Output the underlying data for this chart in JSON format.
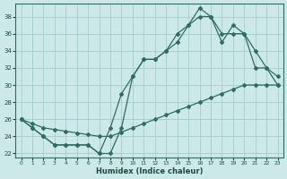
{
  "xlabel": "Humidex (Indice chaleur)",
  "bg_color": "#cce8e8",
  "grid_color": "#aad0d0",
  "line_color": "#2a6e64",
  "line1_x": [
    0,
    1,
    2,
    3,
    4,
    5,
    6,
    7,
    8,
    9,
    10,
    11,
    12,
    13,
    14,
    15,
    16,
    17,
    18,
    19,
    20,
    21,
    22,
    23
  ],
  "line1_y": [
    26,
    25,
    24,
    23,
    23,
    23,
    23,
    22,
    22,
    25,
    31,
    33,
    33,
    34,
    35,
    37,
    38,
    38,
    35,
    37,
    36,
    32,
    32,
    31
  ],
  "line2_x": [
    0,
    1,
    2,
    3,
    4,
    5,
    6,
    7,
    8,
    9,
    10,
    11,
    12,
    13,
    14,
    15,
    16,
    17,
    18,
    19,
    20,
    21,
    22,
    23
  ],
  "line2_y": [
    26,
    25,
    24,
    23,
    23,
    23,
    23,
    22,
    25,
    29,
    31,
    33,
    33,
    34,
    36,
    37,
    39,
    38,
    36,
    36,
    36,
    34,
    32,
    30
  ],
  "line3_x": [
    0,
    1,
    2,
    3,
    4,
    5,
    6,
    7,
    8,
    9,
    10,
    11,
    12,
    13,
    14,
    15,
    16,
    17,
    18,
    19,
    20,
    21,
    22,
    23
  ],
  "line3_y": [
    26,
    25.5,
    25,
    24.8,
    24.6,
    24.4,
    24.2,
    24,
    24,
    24.5,
    25,
    25.5,
    26,
    26.5,
    27,
    27.5,
    28,
    28.5,
    29,
    29.5,
    30,
    30,
    30,
    30
  ],
  "xlim": [
    -0.5,
    23.5
  ],
  "ylim": [
    21.5,
    39.5
  ],
  "yticks": [
    22,
    24,
    26,
    28,
    30,
    32,
    34,
    36,
    38
  ],
  "xticks": [
    0,
    1,
    2,
    3,
    4,
    5,
    6,
    7,
    8,
    9,
    10,
    11,
    12,
    13,
    14,
    15,
    16,
    17,
    18,
    19,
    20,
    21,
    22,
    23
  ]
}
